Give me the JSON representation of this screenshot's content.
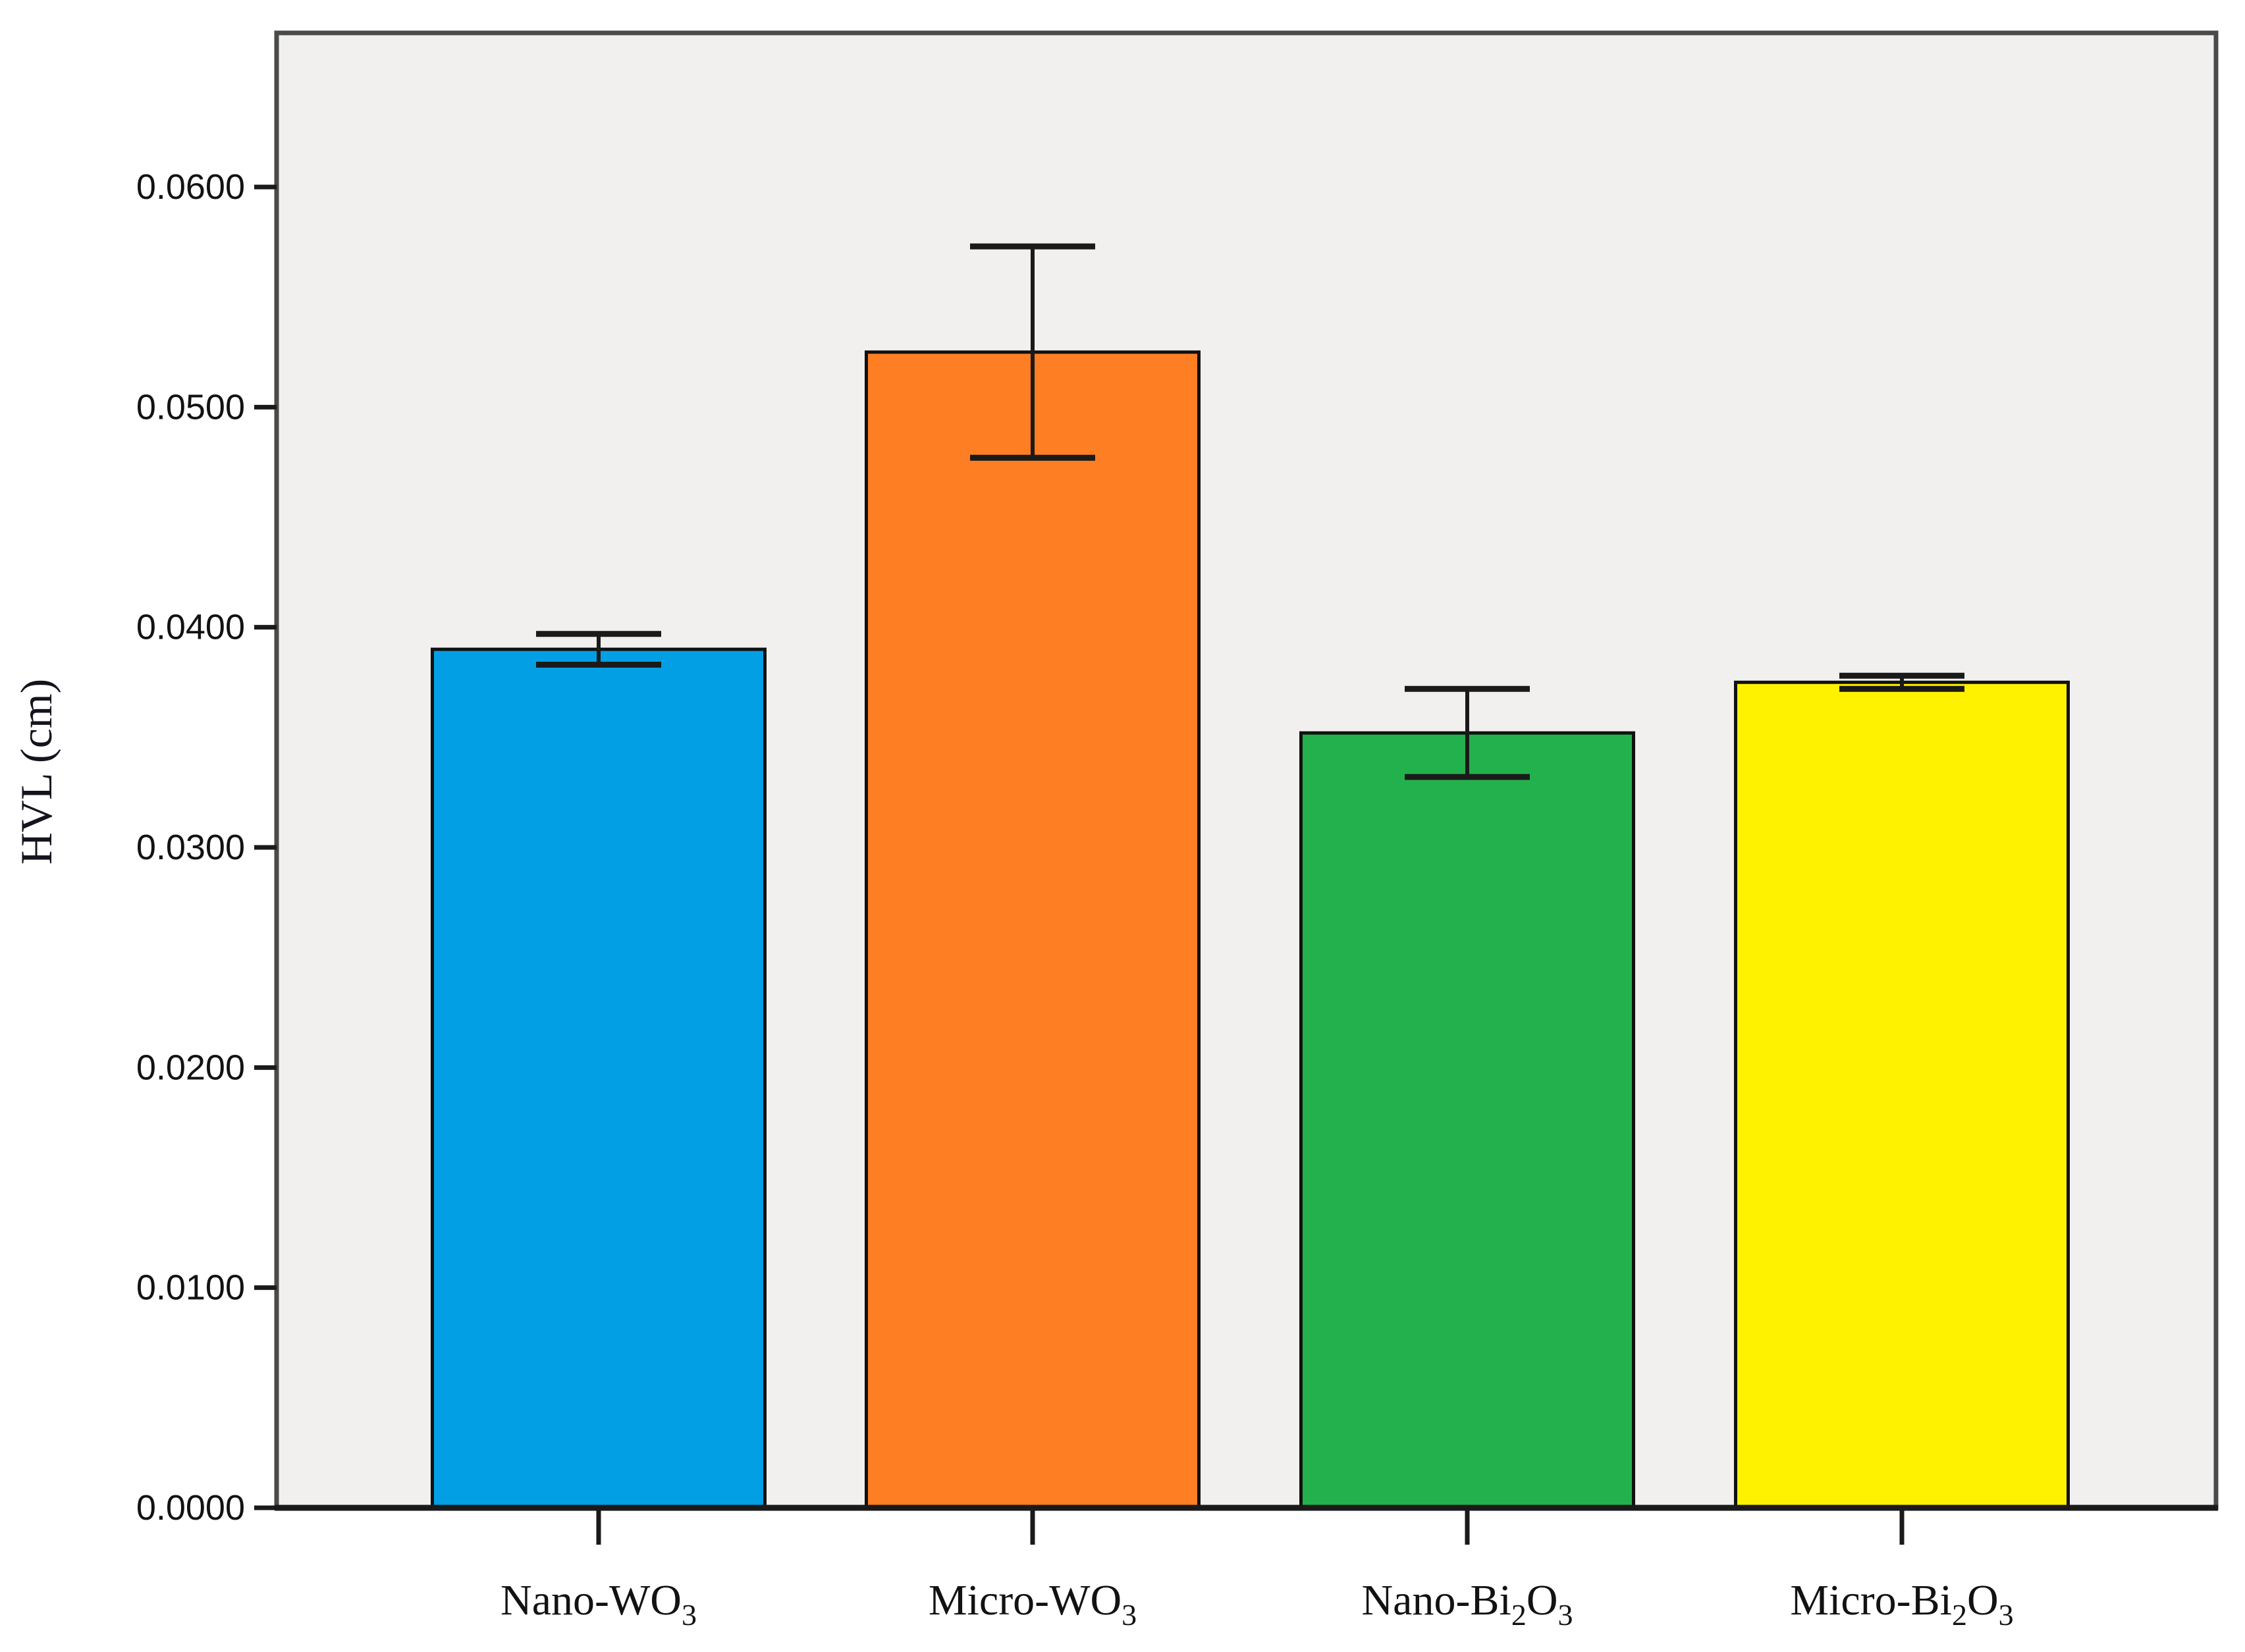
{
  "chart_data": {
    "type": "bar",
    "title": "",
    "xlabel": "",
    "ylabel": "HVL (cm)",
    "categories": [
      "Nano-WO₃",
      "Micro-WO₃",
      "Nano-Bi₂O₃",
      "Micro-Bi₂O₃"
    ],
    "values": [
      0.039,
      0.0525,
      0.0352,
      0.0375
    ],
    "error_bars": [
      0.0007,
      0.0048,
      0.002,
      0.0003
    ],
    "bar_colors": [
      "#029FE5",
      "#FD7E23",
      "#23B14D",
      "#FFF200"
    ],
    "bar_outline_color": "#111111",
    "error_bar_color": "#1a1a1a",
    "yticks": [
      "0.0000",
      "0.0100",
      "0.0200",
      "0.0300",
      "0.0400",
      "0.0500",
      "0.0600"
    ],
    "ytick_values": [
      0.0,
      0.01,
      0.02,
      0.03,
      0.04,
      0.05,
      0.06
    ],
    "ylim": [
      0,
      0.067
    ],
    "grid": false,
    "legend": null,
    "plot_background": "#F1F0EF",
    "plot_border_color": "#4a4a4a",
    "axis_line_color": "#1a1a1a",
    "page_background": "#ffffff"
  }
}
